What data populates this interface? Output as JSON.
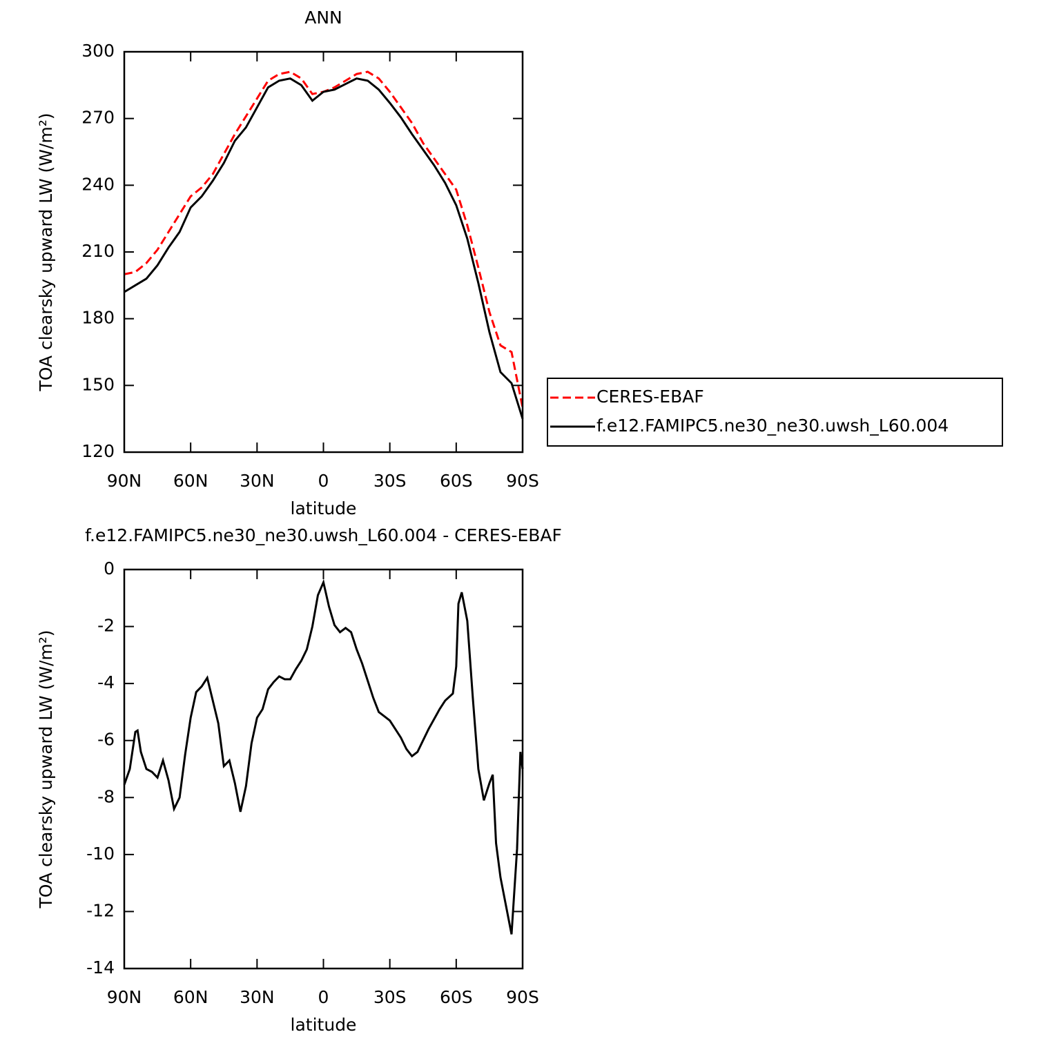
{
  "chart_data": [
    {
      "type": "line",
      "title": "ANN",
      "xlabel": "latitude",
      "ylabel": "TOA clearsky upward LW (W/m²)",
      "x": [
        90,
        85,
        80,
        75,
        70,
        65,
        60,
        55,
        50,
        45,
        40,
        35,
        30,
        25,
        20,
        15,
        10,
        5,
        0,
        -5,
        -10,
        -15,
        -20,
        -25,
        -30,
        -35,
        -40,
        -45,
        -50,
        -55,
        -60,
        -65,
        -70,
        -75,
        -80,
        -85,
        -90
      ],
      "series": [
        {
          "name": "CERES-EBAF",
          "color": "#ff0000",
          "line_style": "dashed",
          "values": [
            200,
            201,
            205,
            211,
            219,
            227,
            235,
            239,
            245,
            254,
            263,
            271,
            279,
            287,
            290,
            291,
            288,
            281,
            282,
            284,
            287,
            290,
            291,
            288,
            282,
            275,
            268,
            259,
            252,
            245,
            238,
            222,
            203,
            183,
            168,
            165,
            140
          ]
        },
        {
          "name": "f.e12.FAMIPC5.ne30_ne30.uwsh_L60.004",
          "color": "#000000",
          "line_style": "solid",
          "values": [
            192,
            195,
            198,
            204,
            212,
            219,
            230,
            235,
            242,
            250,
            260,
            266,
            275,
            284,
            287,
            288,
            285,
            278,
            282,
            283,
            285.5,
            288,
            287,
            283,
            277,
            270.5,
            263,
            256,
            249,
            241,
            231,
            216,
            196,
            174,
            156,
            151,
            135
          ]
        }
      ],
      "xlim": [
        90,
        -90
      ],
      "xticks": [
        {
          "value": 90,
          "label": "90N"
        },
        {
          "value": 60,
          "label": "60N"
        },
        {
          "value": 30,
          "label": "30N"
        },
        0,
        {
          "value": -30,
          "label": "30S"
        },
        {
          "value": -60,
          "label": "60S"
        },
        {
          "value": -90,
          "label": "90S"
        }
      ],
      "ylim": [
        120,
        300
      ],
      "yticks": [
        120,
        150,
        180,
        210,
        240,
        270,
        300
      ],
      "legend": "outside-right"
    },
    {
      "type": "line",
      "title": "f.e12.FAMIPC5.ne30_ne30.uwsh_L60.004 - CERES-EBAF",
      "xlabel": "latitude",
      "ylabel": "TOA clearsky upward LW (W/m²)",
      "x": [
        90,
        87.5,
        85,
        84,
        82.5,
        80,
        77.5,
        75,
        72.5,
        70,
        67.5,
        65,
        62.5,
        60,
        57.5,
        55,
        52.5,
        50,
        47.5,
        45,
        42.5,
        40,
        37.5,
        35,
        32.5,
        30,
        27.5,
        25,
        22.5,
        20,
        17.5,
        15,
        12.5,
        10,
        7.5,
        5,
        2.5,
        0,
        -2.5,
        -5,
        -7.5,
        -10,
        -12.5,
        -15,
        -17.5,
        -20,
        -22.5,
        -25,
        -27.5,
        -30,
        -32.5,
        -35,
        -37.5,
        -40,
        -42.5,
        -45,
        -47.5,
        -50,
        -52.5,
        -55,
        -58.5,
        -60,
        -61,
        -62.5,
        -65,
        -67.5,
        -70,
        -72.5,
        -75,
        -76.5,
        -78,
        -80,
        -82.5,
        -85,
        -87.5,
        -89,
        -90
      ],
      "series": [
        {
          "name": "f.e12.FAMIPC5.ne30_ne30.uwsh_L60.004",
          "color": "#000000",
          "line_style": "solid",
          "values": [
            -7.55,
            -7.0,
            -5.7,
            -5.65,
            -6.4,
            -7.0,
            -7.1,
            -7.3,
            -6.7,
            -7.4,
            -8.4,
            -8.0,
            -6.5,
            -5.2,
            -4.3,
            -4.1,
            -3.8,
            -4.6,
            -5.4,
            -6.9,
            -6.7,
            -7.5,
            -8.5,
            -7.6,
            -6.1,
            -5.2,
            -4.9,
            -4.2,
            -3.95,
            -3.75,
            -3.85,
            -3.85,
            -3.5,
            -3.2,
            -2.8,
            -2.0,
            -0.9,
            -0.45,
            -1.3,
            -1.95,
            -2.2,
            -2.05,
            -2.2,
            -2.8,
            -3.3,
            -3.9,
            -4.5,
            -5.0,
            -5.15,
            -5.3,
            -5.6,
            -5.9,
            -6.3,
            -6.55,
            -6.4,
            -6.0,
            -5.6,
            -5.25,
            -4.9,
            -4.6,
            -4.35,
            -3.4,
            -1.2,
            -0.8,
            -1.8,
            -4.5,
            -7.0,
            -8.1,
            -7.5,
            -7.2,
            -9.6,
            -10.8,
            -11.8,
            -12.8,
            -9.8,
            -6.4,
            -7.0
          ]
        }
      ],
      "xlim": [
        90,
        -90
      ],
      "xticks": [
        {
          "value": 90,
          "label": "90N"
        },
        {
          "value": 60,
          "label": "60N"
        },
        {
          "value": 30,
          "label": "30N"
        },
        0,
        {
          "value": -30,
          "label": "30S"
        },
        {
          "value": -60,
          "label": "60S"
        },
        {
          "value": -90,
          "label": "90S"
        }
      ],
      "ylim": [
        -14,
        0
      ],
      "yticks": [
        -14,
        -12,
        -10,
        -8,
        -6,
        -4,
        -2,
        0
      ]
    }
  ]
}
